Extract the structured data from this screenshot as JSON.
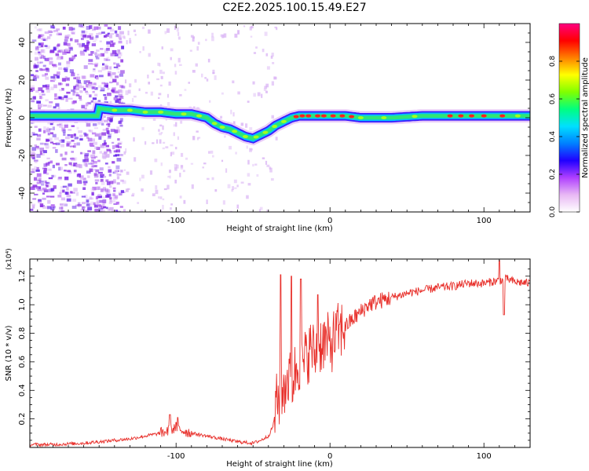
{
  "title": "C2E2.2025.100.15.49.E27",
  "chart_data": [
    {
      "type": "heatmap",
      "xlabel": "Height of straight line (km)",
      "ylabel": "Frequency (Hz)",
      "xlim": [
        -195,
        130
      ],
      "ylim": [
        -50,
        50
      ],
      "xticks": [
        -100,
        0,
        100
      ],
      "yticks": [
        -40,
        -20,
        0,
        20,
        40
      ],
      "colorbar": {
        "label": "Normalized spectral amplitude",
        "range": [
          0,
          1
        ],
        "ticks": [
          "0.0",
          "0.2",
          "0.4",
          "0.6",
          "0.8"
        ],
        "colors": [
          "#ffffff",
          "#e8b8f4",
          "#b040ff",
          "#2000ff",
          "#0080ff",
          "#00e0ff",
          "#00ff80",
          "#80ff00",
          "#ffff00",
          "#ff8000",
          "#ff0000",
          "#ff0080"
        ]
      },
      "ridge": {
        "x": [
          -150,
          -140,
          -130,
          -120,
          -110,
          -100,
          -90,
          -80,
          -75,
          -70,
          -65,
          -60,
          -55,
          -50,
          -45,
          -40,
          -35,
          -30,
          -25,
          -20,
          -10,
          0,
          10,
          20,
          40,
          60,
          80,
          100,
          120,
          130
        ],
        "y": [
          5,
          4,
          4,
          3,
          3,
          2,
          2,
          0,
          -3,
          -5,
          -6,
          -8,
          -10,
          -11,
          -9,
          -7,
          -4,
          -2,
          0,
          1,
          1,
          1,
          1,
          0,
          0,
          1,
          1,
          1,
          1,
          1
        ]
      }
    },
    {
      "type": "line",
      "xlabel": "Height of straight line (km)",
      "ylabel": "SNR (10 * v/v)",
      "yscale_label": "(x10⁴)",
      "xlim": [
        -195,
        130
      ],
      "ylim": [
        0,
        1.32
      ],
      "xticks": [
        -100,
        0,
        100
      ],
      "yticks": [
        0.2,
        0.4,
        0.6,
        0.8,
        1.0,
        1.2
      ],
      "color": "#e8302b",
      "series": [
        {
          "x": [
            -195,
            -180,
            -160,
            -140,
            -130,
            -120,
            -110,
            -104,
            -100,
            -96,
            -90,
            -80,
            -70,
            -60,
            -50,
            -45,
            -40,
            -37,
            -35,
            -33,
            -30,
            -28,
            -25,
            -22,
            -20,
            -18,
            -15,
            -12,
            -10,
            -5,
            0,
            5,
            10,
            15,
            20,
            25,
            30,
            40,
            50,
            60,
            70,
            80,
            90,
            100,
            105,
            110,
            115,
            120,
            130
          ],
          "y": [
            0.02,
            0.02,
            0.03,
            0.05,
            0.06,
            0.08,
            0.1,
            0.12,
            0.14,
            0.12,
            0.1,
            0.08,
            0.06,
            0.04,
            0.03,
            0.05,
            0.08,
            0.15,
            0.3,
            0.35,
            0.4,
            0.5,
            0.45,
            0.55,
            0.6,
            0.55,
            0.65,
            0.7,
            0.65,
            0.75,
            0.72,
            0.8,
            0.85,
            0.9,
            0.95,
            1.0,
            1.02,
            1.05,
            1.08,
            1.1,
            1.12,
            1.13,
            1.15,
            1.15,
            1.16,
            1.17,
            1.18,
            1.16,
            1.15
          ]
        }
      ],
      "spikes": [
        {
          "x": -104,
          "y": 0.23
        },
        {
          "x": -99,
          "y": 0.21
        },
        {
          "x": -32,
          "y": 1.21
        },
        {
          "x": -25,
          "y": 1.2
        },
        {
          "x": -19,
          "y": 1.18
        },
        {
          "x": -8,
          "y": 1.07
        },
        {
          "x": 6,
          "y": 0.86
        },
        {
          "x": 110,
          "y": 1.31
        },
        {
          "x": 113,
          "y": 0.93
        }
      ]
    }
  ]
}
